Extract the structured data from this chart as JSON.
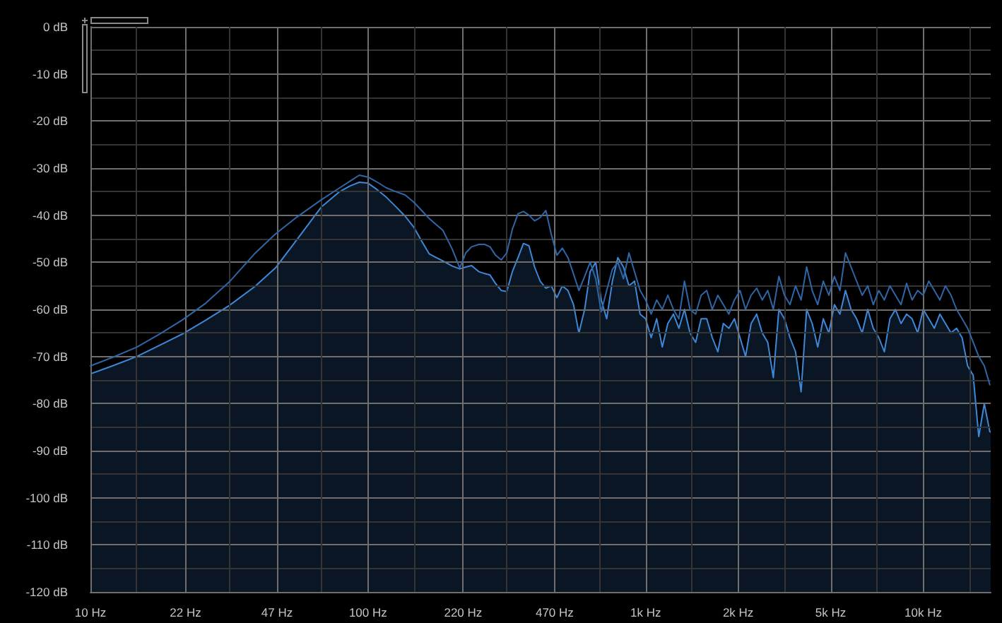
{
  "chart_data": {
    "type": "line",
    "log": "x",
    "grid": true,
    "x": [
      10,
      12,
      14.7,
      17.8,
      21.5,
      26,
      31.6,
      39,
      46.4,
      55.4,
      68,
      79,
      86,
      93,
      100,
      108,
      116.5,
      126,
      136,
      146,
      156,
      166,
      176,
      186,
      201,
      214,
      225,
      236,
      251,
      263,
      275,
      288,
      302,
      316,
      331,
      347,
      363,
      380,
      398,
      417,
      437,
      457,
      479,
      501,
      525,
      550,
      575,
      603,
      631,
      661,
      692,
      724,
      759,
      794,
      832,
      871,
      912,
      955,
      1000,
      1047,
      1096,
      1148,
      1202,
      1259,
      1318,
      1380,
      1445,
      1514,
      1585,
      1660,
      1738,
      1820,
      1905,
      1995,
      2089,
      2188,
      2291,
      2399,
      2512,
      2630,
      2754,
      2884,
      3020,
      3162,
      3311,
      3467,
      3631,
      3802,
      3981,
      4169,
      4365,
      4571,
      4786,
      5012,
      5248,
      5495,
      5754,
      6026,
      6310,
      6607,
      6918,
      7244,
      7586,
      7943,
      8318,
      8710,
      9120,
      9550,
      10000,
      10471,
      10965,
      11482,
      12023,
      12589,
      13183,
      13804,
      14454,
      15136,
      15849,
      16596,
      17378
    ],
    "series": [
      {
        "color": "#2f66a6",
        "values": [
          -72,
          -70.2,
          -68,
          -65.2,
          -62.2,
          -58.7,
          -54.2,
          -48.2,
          -44,
          -40.4,
          -36.7,
          -34.2,
          -32.8,
          -31.5,
          -31.9,
          -33,
          -34.2,
          -35,
          -35.7,
          -37.2,
          -39,
          -40.7,
          -42,
          -43.2,
          -47.2,
          -51.2,
          -48,
          -46.7,
          -46.2,
          -46.2,
          -46.7,
          -48.5,
          -49.5,
          -48,
          -43,
          -39.7,
          -39.2,
          -40,
          -41.2,
          -40.5,
          -39,
          -44,
          -48.5,
          -47,
          -49,
          -52.5,
          -56,
          -53,
          -50,
          -53.5,
          -60.5,
          -56,
          -51.5,
          -50,
          -53.5,
          -48,
          -52,
          -56,
          -58,
          -61,
          -58,
          -60,
          -57,
          -60,
          -62,
          -54,
          -60,
          -61,
          -57,
          -56,
          -60,
          -57,
          -59,
          -61,
          -58,
          -56,
          -60,
          -57,
          -55.5,
          -58,
          -56,
          -60,
          -53,
          -57,
          -59,
          -55,
          -58,
          -51,
          -56,
          -59,
          -54,
          -57,
          -53,
          -56,
          -48,
          -51,
          -54,
          -57,
          -55,
          -59,
          -56,
          -58,
          -55,
          -57,
          -59,
          -54.5,
          -58,
          -56,
          -57,
          -54,
          -56,
          -58,
          -55,
          -57,
          -60,
          -62,
          -64,
          -67,
          -70,
          -72,
          -76
        ]
      },
      {
        "type": "area",
        "color": "#3d88d8",
        "values": [
          -73.7,
          -72,
          -70,
          -67.6,
          -65.2,
          -62.3,
          -59.2,
          -55.2,
          -51.2,
          -45.2,
          -38.2,
          -35,
          -33.8,
          -33,
          -33.2,
          -34.6,
          -36.2,
          -38.2,
          -40.2,
          -42.5,
          -45.5,
          -48.2,
          -49,
          -49.7,
          -50.8,
          -51.4,
          -51,
          -50.7,
          -52,
          -52.4,
          -52.7,
          -54.5,
          -56,
          -56.2,
          -52,
          -49,
          -46,
          -46.5,
          -51,
          -54,
          -55.5,
          -55,
          -57.5,
          -55,
          -56,
          -59,
          -65,
          -60,
          -52,
          -50,
          -58,
          -62,
          -54,
          -49,
          -51,
          -55,
          -54,
          -61,
          -62,
          -66,
          -62,
          -68,
          -63,
          -61,
          -64,
          -60,
          -65,
          -67,
          -62,
          -62,
          -66,
          -69,
          -63,
          -64,
          -62,
          -66,
          -70,
          -63,
          -61,
          -65,
          -67,
          -74.5,
          -60,
          -62,
          -66,
          -69,
          -77.5,
          -60,
          -63,
          -68,
          -62,
          -65,
          -59,
          -61,
          -56,
          -60,
          -62,
          -65,
          -60,
          -64,
          -66,
          -69,
          -62,
          -60,
          -63,
          -61,
          -62,
          -65,
          -60,
          -62,
          -64,
          -61,
          -63,
          -65,
          -64,
          -66,
          -72,
          -74,
          -87,
          -80,
          -86
        ]
      }
    ],
    "xlim": [
      10,
      17500
    ],
    "xticks": [
      {
        "value": 10,
        "label": "10 Hz"
      },
      {
        "value": 14.68,
        "label": null
      },
      {
        "value": 22,
        "label": "22 Hz"
      },
      {
        "value": 31.62,
        "label": null
      },
      {
        "value": 47,
        "label": "47 Hz"
      },
      {
        "value": 68.13,
        "label": null
      },
      {
        "value": 100,
        "label": "100 Hz"
      },
      {
        "value": 146.8,
        "label": null
      },
      {
        "value": 220,
        "label": "220 Hz"
      },
      {
        "value": 316.2,
        "label": null
      },
      {
        "value": 470,
        "label": "470 Hz"
      },
      {
        "value": 681.3,
        "label": null
      },
      {
        "value": 1000,
        "label": "1k Hz"
      },
      {
        "value": 1468,
        "label": null
      },
      {
        "value": 2154,
        "label": "2k Hz"
      },
      {
        "value": 3162,
        "label": null
      },
      {
        "value": 4642,
        "label": "5k Hz"
      },
      {
        "value": 6813,
        "label": null
      },
      {
        "value": 10000,
        "label": "10k Hz"
      },
      {
        "value": 14678,
        "label": null
      }
    ],
    "ylim": [
      -120,
      0
    ],
    "yticks": [
      {
        "value": -120,
        "label": "-120 dB"
      },
      {
        "value": -115,
        "label": null
      },
      {
        "value": -110,
        "label": "-110 dB"
      },
      {
        "value": -105,
        "label": null
      },
      {
        "value": -100,
        "label": "-100 dB"
      },
      {
        "value": -95,
        "label": null
      },
      {
        "value": -90,
        "label": "-90 dB"
      },
      {
        "value": -85,
        "label": null
      },
      {
        "value": -80,
        "label": "-80 dB"
      },
      {
        "value": -75,
        "label": null
      },
      {
        "value": -70,
        "label": "-70 dB"
      },
      {
        "value": -65,
        "label": null
      },
      {
        "value": -60,
        "label": "-60 dB"
      },
      {
        "value": -55,
        "label": null
      },
      {
        "value": -50,
        "label": "-50 dB"
      },
      {
        "value": -45,
        "label": null
      },
      {
        "value": -40,
        "label": "-40 dB"
      },
      {
        "value": -35,
        "label": null
      },
      {
        "value": -30,
        "label": "-30 dB"
      },
      {
        "value": -25,
        "label": null
      },
      {
        "value": -20,
        "label": "-20 dB"
      },
      {
        "value": -15,
        "label": null
      },
      {
        "value": -10,
        "label": "-10 dB"
      },
      {
        "value": -5,
        "label": null
      },
      {
        "value": 0,
        "label": "0 dB"
      }
    ]
  }
}
